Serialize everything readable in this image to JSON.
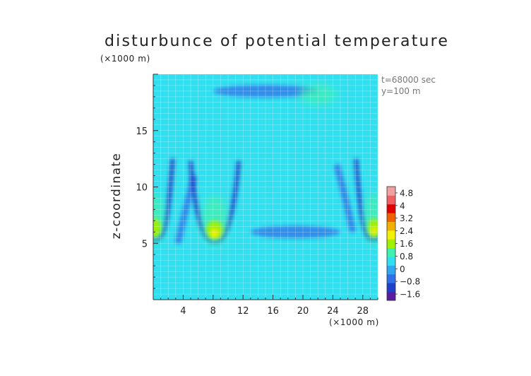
{
  "chart_data": {
    "type": "heatmap",
    "title": "disturbunce of potential temperature",
    "x_unit": "(×1000 m)",
    "y_unit": "(×1000 m)",
    "ylabel": "z-coordinate",
    "xlabel": "",
    "annotations": [
      "t=68000 sec",
      "y=100 m"
    ],
    "xlim": [
      0,
      30
    ],
    "ylim": [
      0,
      20
    ],
    "x_ticks": [
      "4",
      "8",
      "12",
      "16",
      "20",
      "24",
      "28"
    ],
    "x_tick_values": [
      4,
      8,
      12,
      16,
      20,
      24,
      28
    ],
    "y_ticks": [
      "5",
      "10",
      "15"
    ],
    "y_tick_values": [
      5,
      10,
      15
    ],
    "grid": true,
    "colorbar": {
      "labels": [
        "4.8",
        "4",
        "3.2",
        "2.4",
        "1.6",
        "0.8",
        "0",
        "-0.8",
        "-1.6"
      ],
      "values": [
        4.8,
        4,
        3.2,
        2.4,
        1.6,
        0.8,
        0,
        -0.8,
        -1.6
      ],
      "min": -2.0,
      "max": 5.2,
      "colors": [
        "#5a1da0",
        "#2040c8",
        "#3070e8",
        "#30a8f0",
        "#30e0f0",
        "#40f0b0",
        "#a0f000",
        "#f0f000",
        "#f0b000",
        "#f06000",
        "#e00000",
        "#f06060",
        "#f0a0a0"
      ],
      "placement": "right"
    },
    "background_value": 0.3,
    "features": [
      {
        "kind": "plume-warm",
        "x_center": 8.2,
        "z_base": 5.8,
        "peak": 2.4
      },
      {
        "kind": "plume-warm",
        "x_center": 29.5,
        "z_base": 6.0,
        "peak": 2.0
      },
      {
        "kind": "plume-warm",
        "x_center": 0.2,
        "z_base": 6.0,
        "peak": 1.8
      },
      {
        "kind": "cold-band",
        "x_range": [
          13,
          25
        ],
        "z": 6.0,
        "value": -0.8
      },
      {
        "kind": "cold-band",
        "x_range": [
          8,
          22
        ],
        "z": 18.5,
        "value": -0.6
      },
      {
        "kind": "cold-edge",
        "x_center": 5.5,
        "z_range": [
          5,
          11
        ],
        "value": -0.8
      },
      {
        "kind": "cold-edge",
        "x_center": 24.5,
        "z_range": [
          6,
          12
        ],
        "value": -0.8
      },
      {
        "kind": "warm-patch",
        "x_center": 22,
        "z_center": 18.2,
        "value": 0.8
      }
    ]
  }
}
